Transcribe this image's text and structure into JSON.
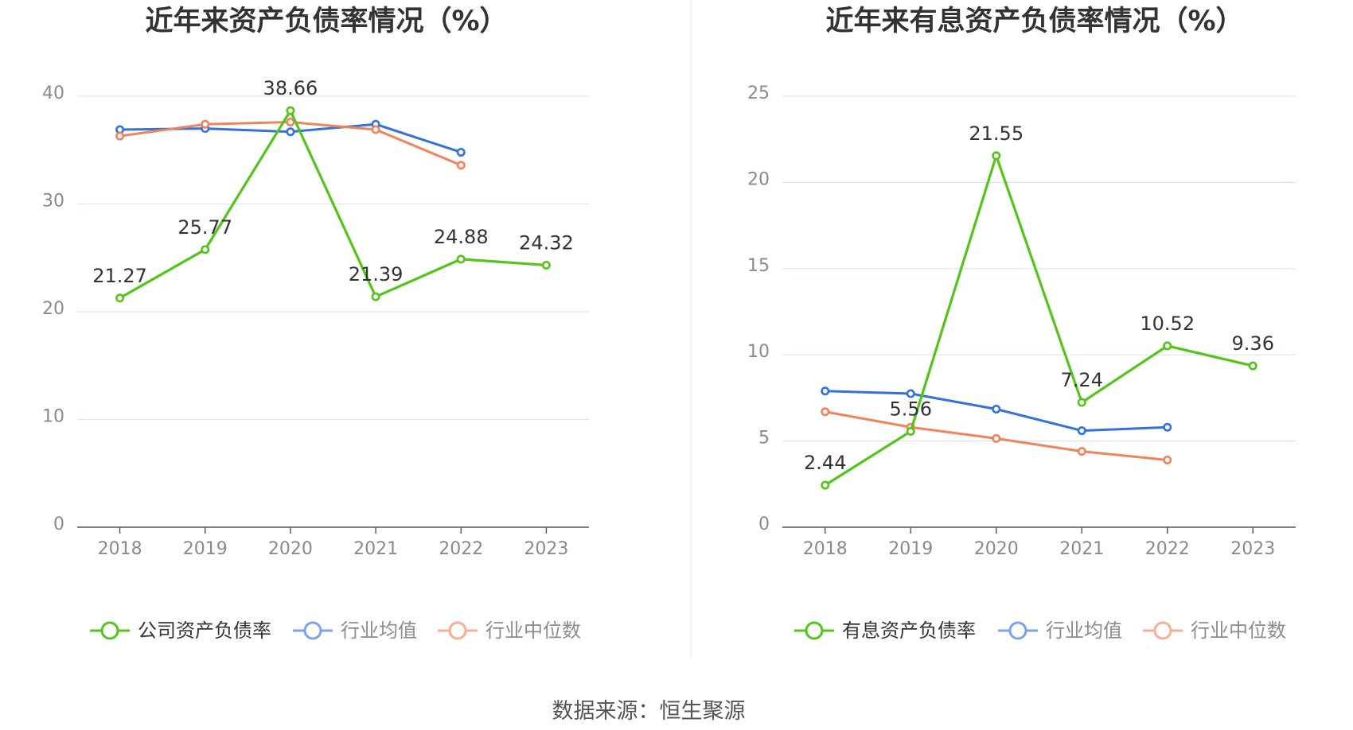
{
  "source": "数据来源：恒生聚源",
  "chart_data": [
    {
      "type": "line",
      "title": "近年来资产负债率情况（%）",
      "categories": [
        "2018",
        "2019",
        "2020",
        "2021",
        "2022",
        "2023"
      ],
      "y_ticks": [
        0,
        10,
        20,
        30,
        40
      ],
      "ylim": [
        0,
        40
      ],
      "grid": true,
      "legend_position": "bottom",
      "series": [
        {
          "name": "公司资产负债率",
          "color": "#52c41a",
          "values": [
            21.27,
            25.77,
            38.66,
            21.39,
            24.88,
            24.32
          ],
          "labels": [
            "21.27",
            "25.77",
            "38.66",
            "21.39",
            "24.88",
            "24.32"
          ]
        },
        {
          "name": "行业均值",
          "color": "#3271e0",
          "values": [
            36.9,
            37.0,
            36.7,
            37.4,
            34.8,
            null
          ]
        },
        {
          "name": "行业中位数",
          "color": "#f2825a",
          "values": [
            36.3,
            37.4,
            37.6,
            36.9,
            33.6,
            null
          ]
        }
      ]
    },
    {
      "type": "line",
      "title": "近年来有息资产负债率情况（%）",
      "categories": [
        "2018",
        "2019",
        "2020",
        "2021",
        "2022",
        "2023"
      ],
      "y_ticks": [
        0,
        5,
        10,
        15,
        20,
        25
      ],
      "ylim": [
        0,
        25
      ],
      "grid": true,
      "legend_position": "bottom",
      "series": [
        {
          "name": "有息资产负债率",
          "color": "#52c41a",
          "values": [
            2.44,
            5.56,
            21.55,
            7.24,
            10.52,
            9.36
          ],
          "labels": [
            "2.44",
            "5.56",
            "21.55",
            "7.24",
            "10.52",
            "9.36"
          ]
        },
        {
          "name": "行业均值",
          "color": "#3271e0",
          "values": [
            7.9,
            7.75,
            6.85,
            5.6,
            5.8,
            null
          ]
        },
        {
          "name": "行业中位数",
          "color": "#f2825a",
          "values": [
            6.7,
            5.8,
            5.15,
            4.4,
            3.9,
            null
          ]
        }
      ]
    }
  ]
}
